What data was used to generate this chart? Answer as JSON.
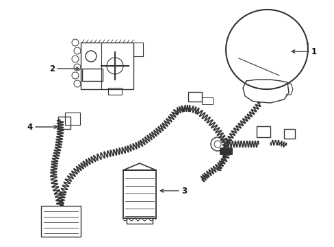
{
  "background_color": "#ffffff",
  "line_color": "#333333",
  "line_width": 1.0,
  "label_color": "#111111",
  "fig_width": 4.89,
  "fig_height": 3.6,
  "dpi": 100
}
